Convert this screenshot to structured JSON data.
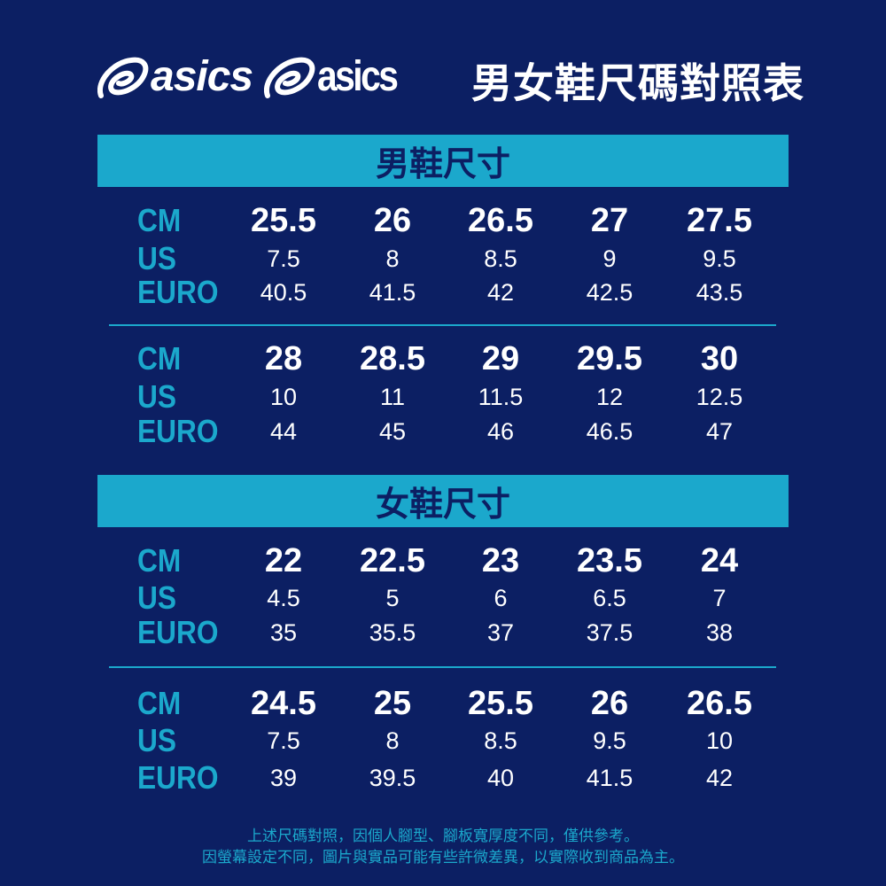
{
  "logos": [
    "asics",
    "asics"
  ],
  "title": "男女鞋尺碼對照表",
  "labels": {
    "cm": "CM",
    "us": "US",
    "euro": "EURO"
  },
  "colors": {
    "background": "#0c1f63",
    "accent": "#1ba8cc",
    "text": "#ffffff"
  },
  "sections": [
    {
      "title": "男鞋尺寸",
      "groups": [
        {
          "cm": [
            "25.5",
            "26",
            "26.5",
            "27",
            "27.5"
          ],
          "us": [
            "7.5",
            "8",
            "8.5",
            "9",
            "9.5"
          ],
          "euro": [
            "40.5",
            "41.5",
            "42",
            "42.5",
            "43.5"
          ]
        },
        {
          "cm": [
            "28",
            "28.5",
            "29",
            "29.5",
            "30"
          ],
          "us": [
            "10",
            "11",
            "11.5",
            "12",
            "12.5"
          ],
          "euro": [
            "44",
            "45",
            "46",
            "46.5",
            "47"
          ]
        }
      ]
    },
    {
      "title": "女鞋尺寸",
      "groups": [
        {
          "cm": [
            "22",
            "22.5",
            "23",
            "23.5",
            "24"
          ],
          "us": [
            "4.5",
            "5",
            "6",
            "6.5",
            "7"
          ],
          "euro": [
            "35",
            "35.5",
            "37",
            "37.5",
            "38"
          ]
        },
        {
          "cm": [
            "24.5",
            "25",
            "25.5",
            "26",
            "26.5"
          ],
          "us": [
            "7.5",
            "8",
            "8.5",
            "9.5",
            "10"
          ],
          "euro": [
            "39",
            "39.5",
            "40",
            "41.5",
            "42"
          ]
        }
      ]
    }
  ],
  "notes": [
    "上述尺碼對照，因個人腳型、腳板寬厚度不同，僅供參考。",
    "因螢幕設定不同，圖片與實品可能有些許微差異，以實際收到商品為主。"
  ]
}
